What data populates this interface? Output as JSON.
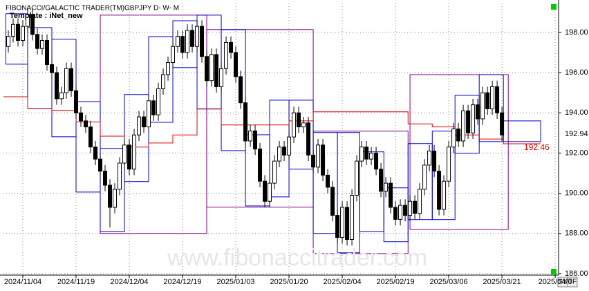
{
  "chart_data": {
    "type": "candlestick",
    "title": "FIBONACCI/GALACTIC TRADER(TM)",
    "subtitle": "GBPJPY D- W- M",
    "template": "Template : iNet_new",
    "watermark": "www.fibonaccitrader.com",
    "buttons": [
      "SY",
      "TF"
    ],
    "xlim": [
      -1,
      113.7
    ],
    "ylim": [
      185.93,
      199.44
    ],
    "xticks": [
      {
        "value": 3,
        "label": "2024/11/04"
      },
      {
        "value": 14,
        "label": "2024/11/19"
      },
      {
        "value": 25,
        "label": "2024/12/04"
      },
      {
        "value": 36,
        "label": "2024/12/19"
      },
      {
        "value": 47,
        "label": "2025/01/03"
      },
      {
        "value": 58,
        "label": "2025/01/20"
      },
      {
        "value": 69,
        "label": "2025/02/04"
      },
      {
        "value": 80,
        "label": "2025/02/19"
      },
      {
        "value": 91,
        "label": "2025/03/06"
      },
      {
        "value": 102,
        "label": "2025/03/21"
      },
      {
        "value": 113,
        "label": "2025/04/0"
      }
    ],
    "yticks": [
      {
        "value": 186,
        "label": "186.00"
      },
      {
        "value": 188,
        "label": "188.00"
      },
      {
        "value": 190,
        "label": "190.00"
      },
      {
        "value": 192,
        "label": "192.00"
      },
      {
        "value": 194,
        "label": "194.00"
      },
      {
        "value": 196,
        "label": "196.00"
      },
      {
        "value": 198,
        "label": "198.00"
      }
    ],
    "grid": true,
    "up_color": "#ffffff",
    "down_color": "#000000",
    "opens": [
      197.3,
      197.8,
      198.4,
      197.6,
      198.3,
      198.9,
      197.9,
      197.2,
      197.6,
      196.4,
      196.0,
      194.7,
      195.0,
      196.2,
      195.1,
      194.0,
      193.6,
      193.3,
      192.3,
      191.7,
      191.1,
      190.4,
      189.3,
      190.2,
      191.5,
      192.4,
      191.2,
      192.9,
      193.8,
      193.3,
      194.6,
      193.9,
      195.2,
      195.9,
      196.5,
      197.3,
      197.8,
      197.0,
      198.1,
      197.3,
      198.3,
      196.8,
      195.6,
      196.9,
      195.3,
      196.2,
      197.5,
      197.0,
      195.8,
      194.5,
      192.6,
      193.1,
      192.2,
      190.6,
      189.6,
      190.5,
      191.6,
      192.3,
      191.9,
      192.8,
      194.0,
      193.3,
      193.5,
      191.9,
      191.3,
      192.4,
      190.9,
      190.3,
      188.9,
      187.8,
      189.3,
      187.7,
      189.9,
      191.6,
      192.3,
      191.7,
      192.0,
      191.2,
      190.1,
      190.5,
      189.3,
      188.7,
      189.4,
      188.9,
      189.6,
      189.0,
      190.2,
      191.4,
      192.1,
      191.1,
      189.2,
      190.6,
      192.3,
      193.2,
      192.6,
      194.1,
      193.0,
      194.4,
      193.7,
      195.0,
      194.2,
      195.3,
      194.0
    ],
    "highs": [
      198.1,
      198.7,
      198.7,
      198.6,
      199.2,
      199.2,
      198.2,
      197.9,
      197.9,
      196.7,
      196.3,
      195.3,
      196.5,
      196.5,
      195.4,
      194.3,
      193.9,
      193.6,
      192.6,
      192.0,
      191.4,
      190.7,
      190.5,
      191.8,
      192.7,
      192.7,
      193.2,
      194.1,
      194.1,
      194.9,
      194.9,
      195.5,
      196.2,
      196.8,
      197.6,
      198.1,
      198.1,
      198.4,
      198.4,
      198.6,
      198.6,
      197.1,
      197.2,
      197.2,
      196.5,
      197.8,
      197.8,
      197.3,
      196.1,
      194.8,
      193.4,
      193.4,
      192.5,
      190.9,
      190.8,
      191.9,
      192.6,
      192.6,
      193.1,
      194.3,
      194.3,
      193.8,
      193.8,
      192.2,
      192.7,
      192.7,
      191.2,
      190.6,
      189.2,
      189.6,
      189.6,
      190.2,
      191.9,
      192.6,
      192.6,
      192.3,
      192.3,
      191.5,
      190.8,
      190.8,
      189.6,
      189.7,
      189.7,
      189.9,
      189.9,
      190.5,
      191.7,
      192.4,
      192.4,
      191.4,
      190.9,
      192.6,
      193.5,
      193.5,
      194.4,
      194.4,
      194.7,
      194.7,
      195.3,
      195.3,
      195.6,
      195.6,
      194.3
    ],
    "lows": [
      197.0,
      197.5,
      197.3,
      197.3,
      198.0,
      197.6,
      196.9,
      196.9,
      196.1,
      195.7,
      194.4,
      194.4,
      194.7,
      194.8,
      193.7,
      193.3,
      193.0,
      192.0,
      191.4,
      190.8,
      190.1,
      188.3,
      189.0,
      189.9,
      191.2,
      190.9,
      190.9,
      192.6,
      193.0,
      193.0,
      193.6,
      193.6,
      194.9,
      195.6,
      196.2,
      197.0,
      196.7,
      196.7,
      197.0,
      197.0,
      196.5,
      195.3,
      195.3,
      195.0,
      195.0,
      195.9,
      196.7,
      195.5,
      194.2,
      192.3,
      192.3,
      191.9,
      190.3,
      189.3,
      189.3,
      190.2,
      191.3,
      191.6,
      191.6,
      192.5,
      193.0,
      193.0,
      191.6,
      191.0,
      191.0,
      190.6,
      190.0,
      188.6,
      187.5,
      187.5,
      187.4,
      187.4,
      189.6,
      191.3,
      191.4,
      191.4,
      190.9,
      189.8,
      189.8,
      189.0,
      188.4,
      188.4,
      188.6,
      188.6,
      188.7,
      188.7,
      189.9,
      191.1,
      190.8,
      188.9,
      188.9,
      190.3,
      192.0,
      192.3,
      192.3,
      192.7,
      192.7,
      193.4,
      193.4,
      193.9,
      193.9,
      193.7,
      192.6
    ],
    "closes": [
      197.8,
      198.4,
      197.6,
      198.3,
      198.9,
      197.9,
      197.2,
      197.6,
      196.4,
      196.0,
      194.7,
      195.0,
      196.2,
      195.1,
      194.0,
      193.6,
      193.3,
      192.3,
      191.7,
      191.1,
      190.4,
      189.3,
      190.2,
      191.5,
      192.4,
      191.2,
      192.9,
      193.8,
      193.3,
      194.6,
      193.9,
      195.2,
      195.9,
      196.5,
      197.3,
      197.8,
      197.0,
      198.1,
      197.3,
      198.3,
      196.8,
      195.6,
      196.9,
      195.3,
      196.2,
      197.5,
      197.0,
      195.8,
      194.5,
      192.6,
      193.1,
      192.2,
      190.6,
      189.6,
      190.5,
      191.6,
      192.3,
      191.9,
      192.8,
      194.0,
      193.3,
      193.5,
      191.9,
      191.3,
      192.4,
      190.9,
      190.3,
      188.9,
      187.8,
      189.3,
      187.7,
      189.9,
      191.6,
      192.3,
      191.7,
      192.0,
      191.2,
      190.1,
      190.5,
      189.3,
      188.7,
      189.4,
      188.9,
      189.6,
      189.0,
      190.2,
      191.4,
      192.1,
      191.1,
      189.2,
      190.6,
      192.3,
      193.2,
      192.6,
      194.1,
      193.0,
      194.4,
      193.7,
      195.0,
      194.2,
      195.3,
      194.0,
      192.9
    ],
    "monthly_boxes": {
      "color": "#800080",
      "boxes": [
        [
          19,
          41,
          198.86,
          188.0
        ],
        [
          41,
          63,
          198.14,
          189.31
        ],
        [
          63,
          82.6,
          193.09,
          187.0
        ],
        [
          83,
          103.3,
          195.9,
          188.2
        ]
      ]
    },
    "weekly_boxes": {
      "color": "#0000cc",
      "boxes": [
        [
          -0.5,
          4,
          198.93,
          196.42
        ],
        [
          4,
          9,
          198.24,
          194.22
        ],
        [
          9,
          14,
          197.66,
          192.81
        ],
        [
          14,
          19,
          194.56,
          190.06
        ],
        [
          19,
          24,
          192.23,
          188.1
        ],
        [
          24,
          29,
          194.91,
          190.58
        ],
        [
          29,
          34,
          197.79,
          193.53
        ],
        [
          34,
          39,
          198.58,
          196.25
        ],
        [
          39,
          44,
          198.86,
          194.19
        ],
        [
          44,
          49,
          198.14,
          192.12
        ],
        [
          49,
          54,
          192.91,
          189.37
        ],
        [
          54,
          58,
          194.63,
          189.82
        ],
        [
          58,
          63,
          194.63,
          191.2
        ],
        [
          63,
          68,
          193.02,
          188.0
        ],
        [
          68,
          72.6,
          193.02,
          187.04
        ],
        [
          72.6,
          77.6,
          192.06,
          188.1
        ],
        [
          77.6,
          82.6,
          190.27,
          187.59
        ],
        [
          82.6,
          87.6,
          192.47,
          188.69
        ],
        [
          87.6,
          92.3,
          193.09,
          188.69
        ],
        [
          92.3,
          97.3,
          194.87,
          191.99
        ],
        [
          97.3,
          102.3,
          195.9,
          192.57
        ],
        [
          102.3,
          110,
          193.6,
          192.57
        ]
      ]
    },
    "pivot_line": {
      "color": "#e00000",
      "step": "post",
      "x": [
        -1,
        4,
        9,
        14,
        19,
        24,
        29,
        34,
        39,
        44,
        49,
        54,
        58,
        63,
        68,
        72.6,
        77.6,
        82.6,
        87.6,
        92.3,
        97.3,
        102.3,
        110
      ],
      "values": [
        194.8,
        194.22,
        194.12,
        193.55,
        192.84,
        192.3,
        192.5,
        192.9,
        194.2,
        193.4,
        193.4,
        193.4,
        193.6,
        194.05,
        194.05,
        194.05,
        194.05,
        193.45,
        193.3,
        192.9,
        192.7,
        192.46,
        192.46
      ]
    },
    "last_price": 192.94,
    "pivot_label": 192.46
  }
}
